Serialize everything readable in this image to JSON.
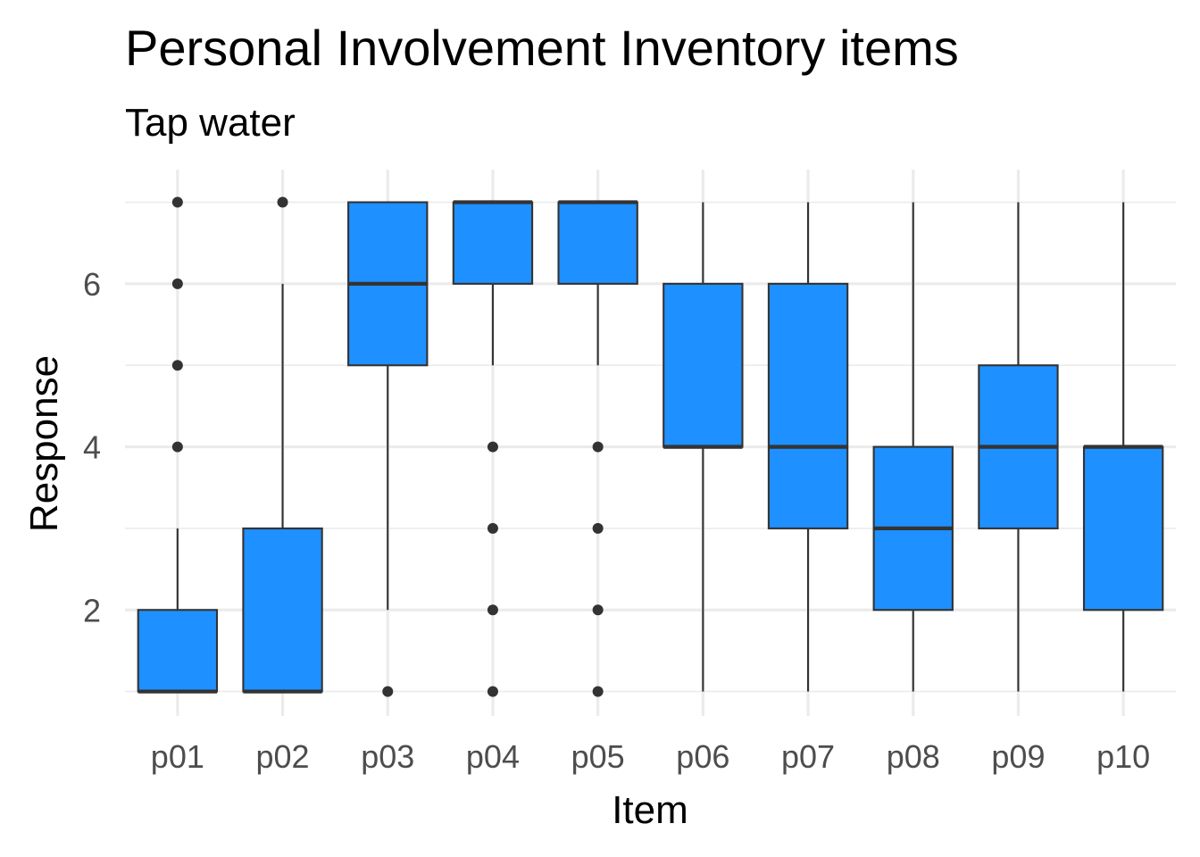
{
  "chart_data": {
    "type": "boxplot",
    "title": "Personal Involvement Inventory items",
    "subtitle": "Tap water",
    "xlabel": "Item",
    "ylabel": "Response",
    "ylim": [
      0.7,
      7.4
    ],
    "y_ticks": [
      2,
      4,
      6
    ],
    "grid": true,
    "fill_color": "#1e90ff",
    "categories": [
      "p01",
      "p02",
      "p03",
      "p04",
      "p05",
      "p06",
      "p07",
      "p08",
      "p09",
      "p10"
    ],
    "boxes": [
      {
        "whisker_low": 1,
        "q1": 1,
        "median": 1,
        "q3": 2,
        "whisker_high": 3,
        "outliers": [
          4,
          5,
          6,
          7
        ]
      },
      {
        "whisker_low": 1,
        "q1": 1,
        "median": 1,
        "q3": 3,
        "whisker_high": 6,
        "outliers": [
          7
        ]
      },
      {
        "whisker_low": 2,
        "q1": 5,
        "median": 6,
        "q3": 7,
        "whisker_high": 7,
        "outliers": [
          1
        ]
      },
      {
        "whisker_low": 5,
        "q1": 6,
        "median": 7,
        "q3": 7,
        "whisker_high": 7,
        "outliers": [
          1,
          2,
          3,
          4
        ]
      },
      {
        "whisker_low": 5,
        "q1": 6,
        "median": 7,
        "q3": 7,
        "whisker_high": 7,
        "outliers": [
          1,
          2,
          3,
          4
        ]
      },
      {
        "whisker_low": 1,
        "q1": 4,
        "median": 4,
        "q3": 6,
        "whisker_high": 7,
        "outliers": []
      },
      {
        "whisker_low": 1,
        "q1": 3,
        "median": 4,
        "q3": 6,
        "whisker_high": 7,
        "outliers": []
      },
      {
        "whisker_low": 1,
        "q1": 2,
        "median": 3,
        "q3": 4,
        "whisker_high": 7,
        "outliers": []
      },
      {
        "whisker_low": 1,
        "q1": 3,
        "median": 4,
        "q3": 5,
        "whisker_high": 7,
        "outliers": []
      },
      {
        "whisker_low": 1,
        "q1": 2,
        "median": 4,
        "q3": 4,
        "whisker_high": 7,
        "outliers": []
      }
    ]
  }
}
